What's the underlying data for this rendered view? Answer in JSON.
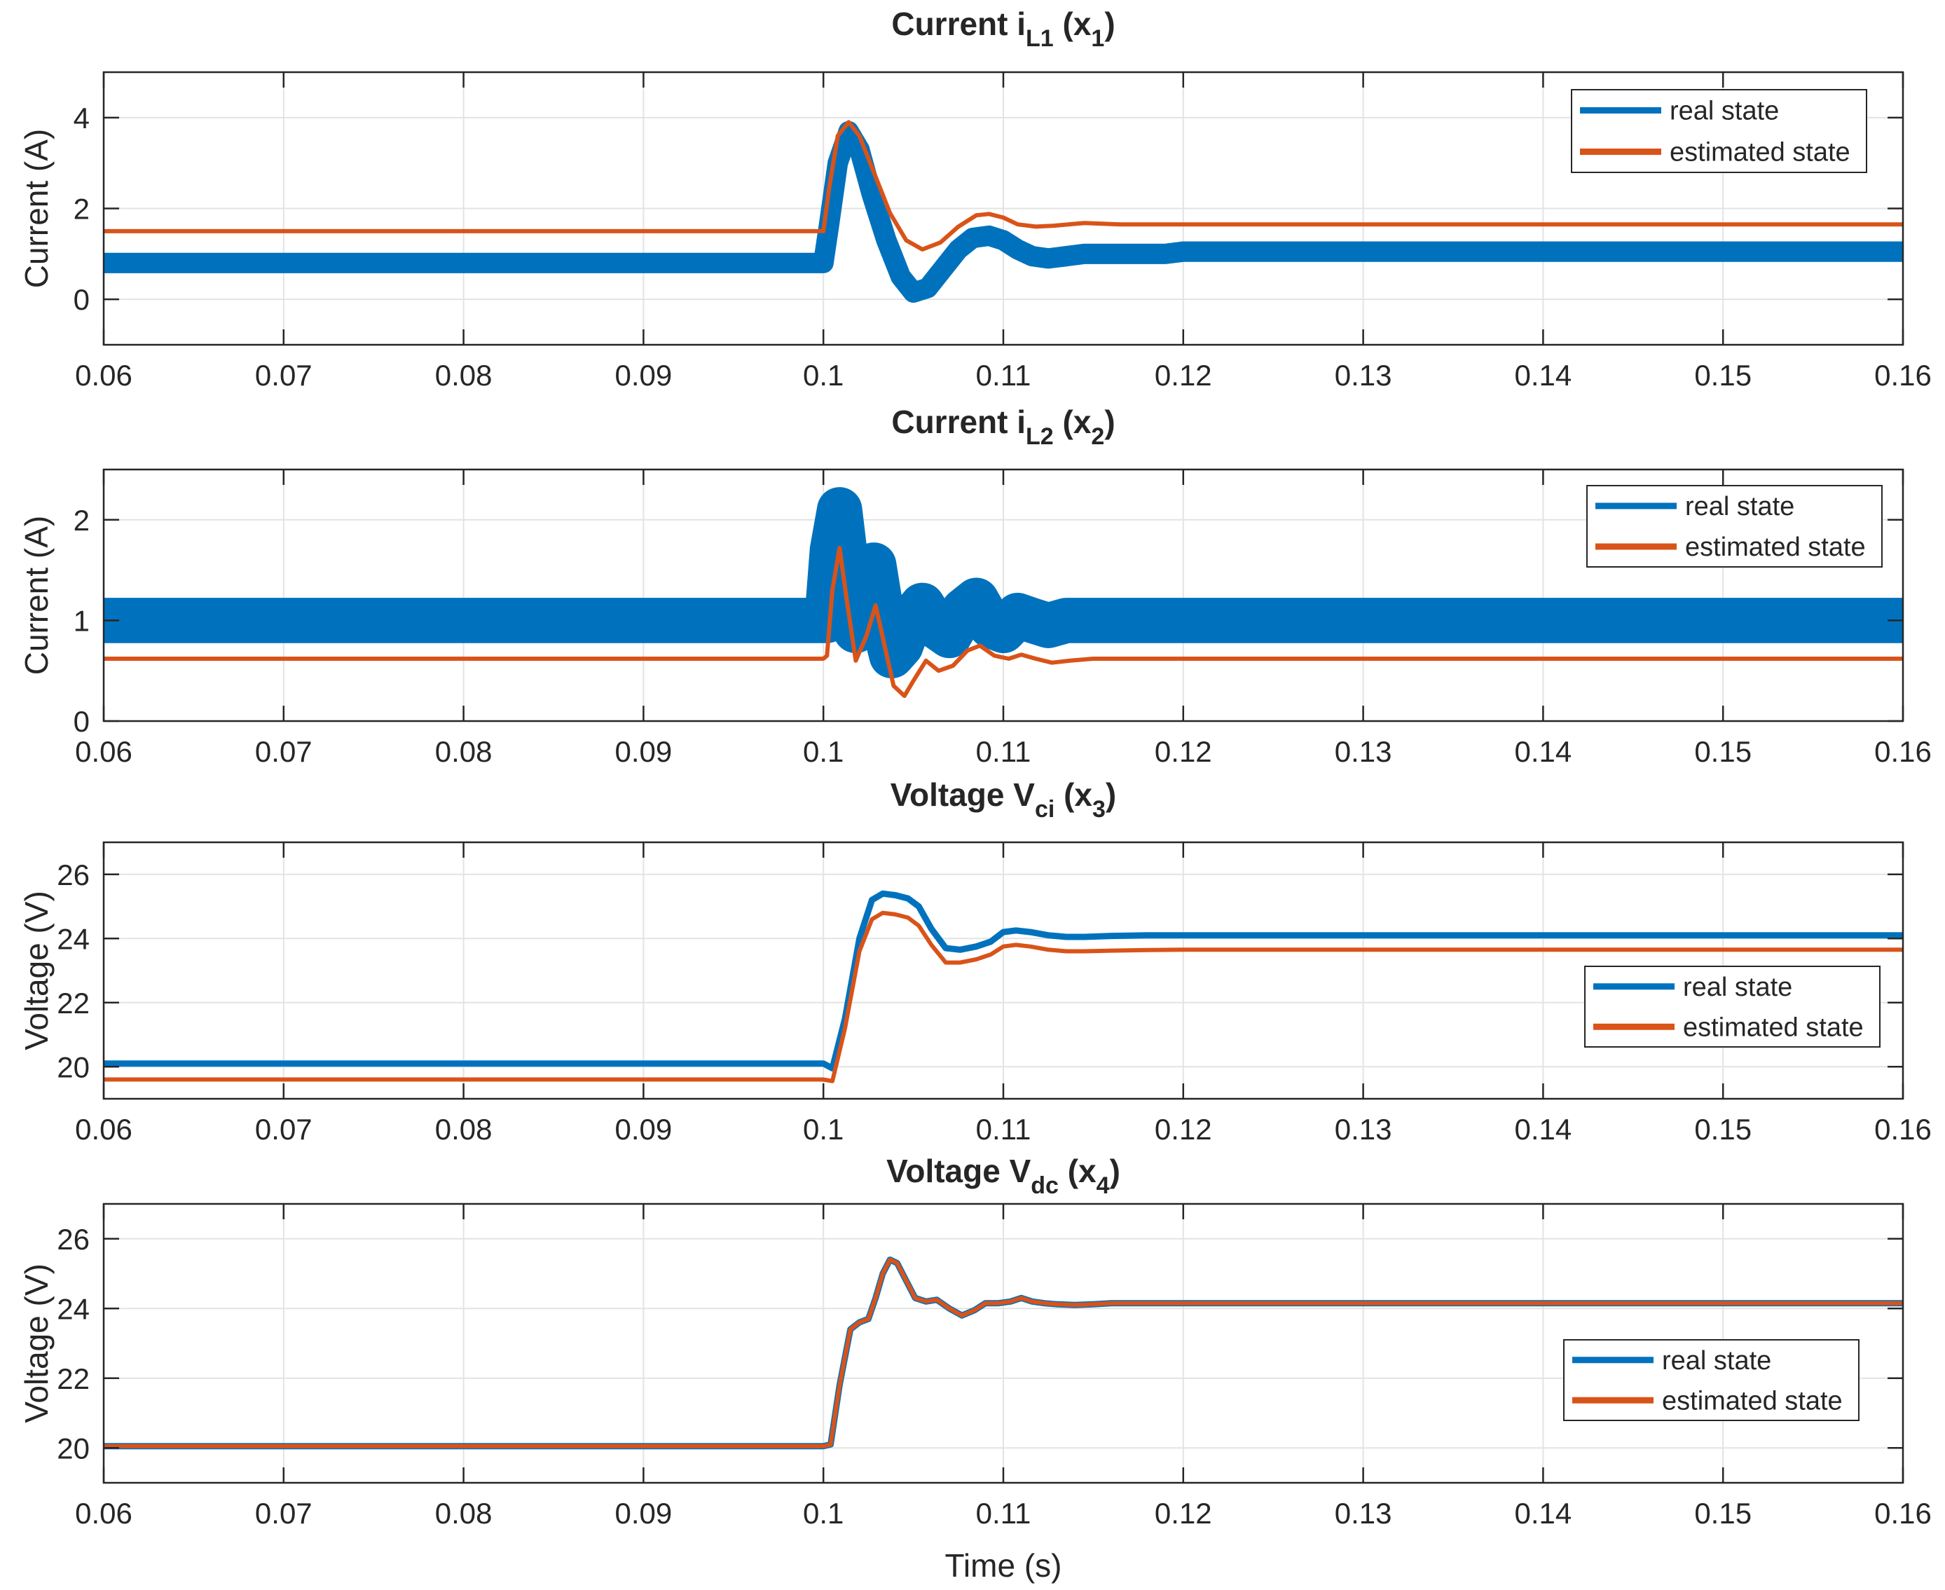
{
  "colors": {
    "real": "#0072bd",
    "estimated": "#d95319",
    "grid": "#e3e3e3",
    "axis": "#262626"
  },
  "chart_data": [
    {
      "type": "line",
      "title": {
        "main": "Current i",
        "sub": "L1",
        "after": " (x",
        "sub2": "1",
        "close": ")"
      },
      "xlabel": "",
      "ylabel": "Current (A)",
      "xlim": [
        0.06,
        0.16
      ],
      "ylim": [
        -1,
        5
      ],
      "xticks": [
        0.06,
        0.07,
        0.08,
        0.09,
        0.1,
        0.11,
        0.12,
        0.13,
        0.14,
        0.15,
        0.16
      ],
      "xtick_labels": [
        "0.06",
        "0.07",
        "0.08",
        "0.09",
        "0.1",
        "0.11",
        "0.12",
        "0.13",
        "0.14",
        "0.15",
        "0.16"
      ],
      "yticks": [
        0,
        2,
        4
      ],
      "ytick_labels": [
        "0",
        "2",
        "4"
      ],
      "legend": [
        "real state",
        "estimated state"
      ],
      "legend_position": "top-right",
      "series": [
        {
          "name": "real state",
          "ripple": 0.45,
          "x": [
            0.06,
            0.1,
            0.1003,
            0.1008,
            0.1014,
            0.102,
            0.1027,
            0.1035,
            0.1043,
            0.105,
            0.1058,
            0.1066,
            0.1075,
            0.1083,
            0.1092,
            0.11,
            0.1108,
            0.1116,
            0.1125,
            0.1135,
            0.1145,
            0.1155,
            0.1165,
            0.1175,
            0.119,
            0.12,
            0.16
          ],
          "y": [
            0.8,
            0.8,
            1.6,
            3.0,
            3.7,
            3.3,
            2.3,
            1.3,
            0.5,
            0.15,
            0.25,
            0.65,
            1.1,
            1.35,
            1.4,
            1.3,
            1.1,
            0.95,
            0.9,
            0.95,
            1.0,
            1.0,
            1.0,
            1.0,
            1.0,
            1.05,
            1.05
          ]
        },
        {
          "name": "estimated state",
          "ripple": 0,
          "x": [
            0.06,
            0.1,
            0.1003,
            0.1008,
            0.1014,
            0.102,
            0.1028,
            0.1037,
            0.1046,
            0.1055,
            0.1065,
            0.1075,
            0.1085,
            0.1092,
            0.11,
            0.1108,
            0.1118,
            0.1128,
            0.1145,
            0.1165,
            0.118,
            0.16
          ],
          "y": [
            1.5,
            1.5,
            2.4,
            3.6,
            3.9,
            3.6,
            2.8,
            1.9,
            1.3,
            1.1,
            1.25,
            1.6,
            1.85,
            1.88,
            1.8,
            1.65,
            1.6,
            1.62,
            1.68,
            1.65,
            1.65,
            1.65
          ]
        }
      ]
    },
    {
      "type": "line",
      "title": {
        "main": "Current i",
        "sub": "L2",
        "after": " (x",
        "sub2": "2",
        "close": ")"
      },
      "xlabel": "",
      "ylabel": "Current (A)",
      "xlim": [
        0.06,
        0.16
      ],
      "ylim": [
        0,
        2.5
      ],
      "xticks": [
        0.06,
        0.07,
        0.08,
        0.09,
        0.1,
        0.11,
        0.12,
        0.13,
        0.14,
        0.15,
        0.16
      ],
      "xtick_labels": [
        "0.06",
        "0.07",
        "0.08",
        "0.09",
        "0.1",
        "0.11",
        "0.12",
        "0.13",
        "0.14",
        "0.15",
        "0.16"
      ],
      "yticks": [
        0,
        1,
        2
      ],
      "ytick_labels": [
        "0",
        "1",
        "2"
      ],
      "legend": [
        "real state",
        "estimated state"
      ],
      "legend_position": "top-right",
      "series": [
        {
          "name": "real state",
          "ripple": 0.45,
          "x": [
            0.06,
            0.1,
            0.1002,
            0.1005,
            0.1009,
            0.1013,
            0.1018,
            0.1023,
            0.1028,
            0.1033,
            0.1038,
            0.1043,
            0.1048,
            0.1055,
            0.1062,
            0.107,
            0.1078,
            0.1085,
            0.1093,
            0.11,
            0.1108,
            0.1116,
            0.1125,
            0.1135,
            0.1145,
            0.1155,
            0.1165,
            0.12,
            0.16
          ],
          "y": [
            1.0,
            1.0,
            1.0,
            1.7,
            2.1,
            1.5,
            0.9,
            1.4,
            1.55,
            1.0,
            0.65,
            0.75,
            1.0,
            1.15,
            0.95,
            0.85,
            1.1,
            1.2,
            0.95,
            0.9,
            1.05,
            1.0,
            0.95,
            1.0,
            1.0,
            1.0,
            1.0,
            1.0,
            1.0
          ]
        },
        {
          "name": "estimated state",
          "ripple": 0,
          "x": [
            0.06,
            0.1,
            0.1002,
            0.1005,
            0.1009,
            0.1013,
            0.1018,
            0.1024,
            0.1029,
            0.1034,
            0.1039,
            0.1045,
            0.105,
            0.1057,
            0.1064,
            0.1072,
            0.108,
            0.1087,
            0.1095,
            0.1103,
            0.111,
            0.1118,
            0.1127,
            0.1137,
            0.115,
            0.117,
            0.12,
            0.16
          ],
          "y": [
            0.62,
            0.62,
            0.65,
            1.3,
            1.72,
            1.2,
            0.6,
            0.85,
            1.15,
            0.75,
            0.35,
            0.25,
            0.4,
            0.6,
            0.5,
            0.55,
            0.7,
            0.75,
            0.65,
            0.62,
            0.66,
            0.62,
            0.58,
            0.6,
            0.62,
            0.62,
            0.62,
            0.62
          ]
        }
      ]
    },
    {
      "type": "line",
      "title": {
        "main": "Voltage V",
        "sub": "ci",
        "after": " (x",
        "sub2": "3",
        "close": ")"
      },
      "xlabel": "",
      "ylabel": "Voltage (V)",
      "xlim": [
        0.06,
        0.16
      ],
      "ylim": [
        19,
        27
      ],
      "xticks": [
        0.06,
        0.07,
        0.08,
        0.09,
        0.1,
        0.11,
        0.12,
        0.13,
        0.14,
        0.15,
        0.16
      ],
      "xtick_labels": [
        "0.06",
        "0.07",
        "0.08",
        "0.09",
        "0.1",
        "0.11",
        "0.12",
        "0.13",
        "0.14",
        "0.15",
        "0.16"
      ],
      "yticks": [
        20,
        22,
        24,
        26
      ],
      "ytick_labels": [
        "20",
        "22",
        "24",
        "26"
      ],
      "legend": [
        "real state",
        "estimated state"
      ],
      "legend_position": "right",
      "series": [
        {
          "name": "real state",
          "ripple": 0,
          "x": [
            0.06,
            0.1,
            0.1005,
            0.1012,
            0.102,
            0.1027,
            0.1033,
            0.104,
            0.1047,
            0.1053,
            0.106,
            0.1068,
            0.1076,
            0.1085,
            0.1093,
            0.11,
            0.1107,
            0.1115,
            0.1125,
            0.1135,
            0.1145,
            0.116,
            0.118,
            0.12,
            0.16
          ],
          "y": [
            20.1,
            20.1,
            19.95,
            21.5,
            24.0,
            25.2,
            25.4,
            25.35,
            25.25,
            25.0,
            24.3,
            23.7,
            23.65,
            23.75,
            23.9,
            24.2,
            24.25,
            24.2,
            24.1,
            24.05,
            24.05,
            24.08,
            24.1,
            24.1,
            24.1
          ]
        },
        {
          "name": "estimated state",
          "ripple": 0,
          "x": [
            0.06,
            0.1,
            0.1005,
            0.1012,
            0.102,
            0.1027,
            0.1033,
            0.104,
            0.1047,
            0.1053,
            0.106,
            0.1068,
            0.1076,
            0.1085,
            0.1093,
            0.11,
            0.1107,
            0.1115,
            0.1125,
            0.1135,
            0.1145,
            0.116,
            0.118,
            0.12,
            0.16
          ],
          "y": [
            19.6,
            19.6,
            19.55,
            21.2,
            23.6,
            24.6,
            24.8,
            24.75,
            24.65,
            24.4,
            23.8,
            23.25,
            23.25,
            23.35,
            23.5,
            23.75,
            23.8,
            23.75,
            23.65,
            23.6,
            23.6,
            23.62,
            23.64,
            23.65,
            23.65
          ]
        }
      ]
    },
    {
      "type": "line",
      "title": {
        "main": "Voltage V",
        "sub": "dc",
        "after": " (x",
        "sub2": "4",
        "close": ")"
      },
      "xlabel": "Time (s)",
      "ylabel": "Voltage (V)",
      "xlim": [
        0.06,
        0.16
      ],
      "ylim": [
        19,
        27
      ],
      "xticks": [
        0.06,
        0.07,
        0.08,
        0.09,
        0.1,
        0.11,
        0.12,
        0.13,
        0.14,
        0.15,
        0.16
      ],
      "xtick_labels": [
        "0.06",
        "0.07",
        "0.08",
        "0.09",
        "0.1",
        "0.11",
        "0.12",
        "0.13",
        "0.14",
        "0.15",
        "0.16"
      ],
      "yticks": [
        20,
        22,
        24,
        26
      ],
      "ytick_labels": [
        "20",
        "22",
        "24",
        "26"
      ],
      "legend": [
        "real state",
        "estimated state"
      ],
      "legend_position": "right",
      "series": [
        {
          "name": "real state",
          "ripple": 0,
          "x": [
            0.06,
            0.1,
            0.1004,
            0.1009,
            0.1015,
            0.102,
            0.1025,
            0.1029,
            0.1033,
            0.1037,
            0.1041,
            0.1046,
            0.1051,
            0.1057,
            0.1063,
            0.107,
            0.1077,
            0.1084,
            0.109,
            0.1097,
            0.1104,
            0.111,
            0.1116,
            0.1123,
            0.113,
            0.114,
            0.115,
            0.116,
            0.12,
            0.16
          ],
          "y": [
            20.05,
            20.05,
            20.1,
            21.8,
            23.4,
            23.6,
            23.7,
            24.3,
            25.0,
            25.4,
            25.3,
            24.8,
            24.3,
            24.2,
            24.25,
            24.0,
            23.8,
            23.95,
            24.15,
            24.15,
            24.2,
            24.3,
            24.2,
            24.15,
            24.12,
            24.1,
            24.12,
            24.15,
            24.15,
            24.15
          ]
        },
        {
          "name": "estimated state",
          "ripple": 0,
          "x": [
            0.06,
            0.1,
            0.1004,
            0.1009,
            0.1015,
            0.102,
            0.1025,
            0.1029,
            0.1033,
            0.1037,
            0.1041,
            0.1046,
            0.1051,
            0.1057,
            0.1063,
            0.107,
            0.1077,
            0.1084,
            0.109,
            0.1097,
            0.1104,
            0.111,
            0.1116,
            0.1123,
            0.113,
            0.114,
            0.115,
            0.116,
            0.12,
            0.16
          ],
          "y": [
            20.05,
            20.05,
            20.1,
            21.8,
            23.4,
            23.6,
            23.7,
            24.3,
            25.0,
            25.4,
            25.3,
            24.8,
            24.3,
            24.2,
            24.25,
            24.0,
            23.8,
            23.95,
            24.15,
            24.15,
            24.2,
            24.3,
            24.2,
            24.15,
            24.12,
            24.1,
            24.12,
            24.15,
            24.15,
            24.15
          ]
        }
      ]
    }
  ]
}
